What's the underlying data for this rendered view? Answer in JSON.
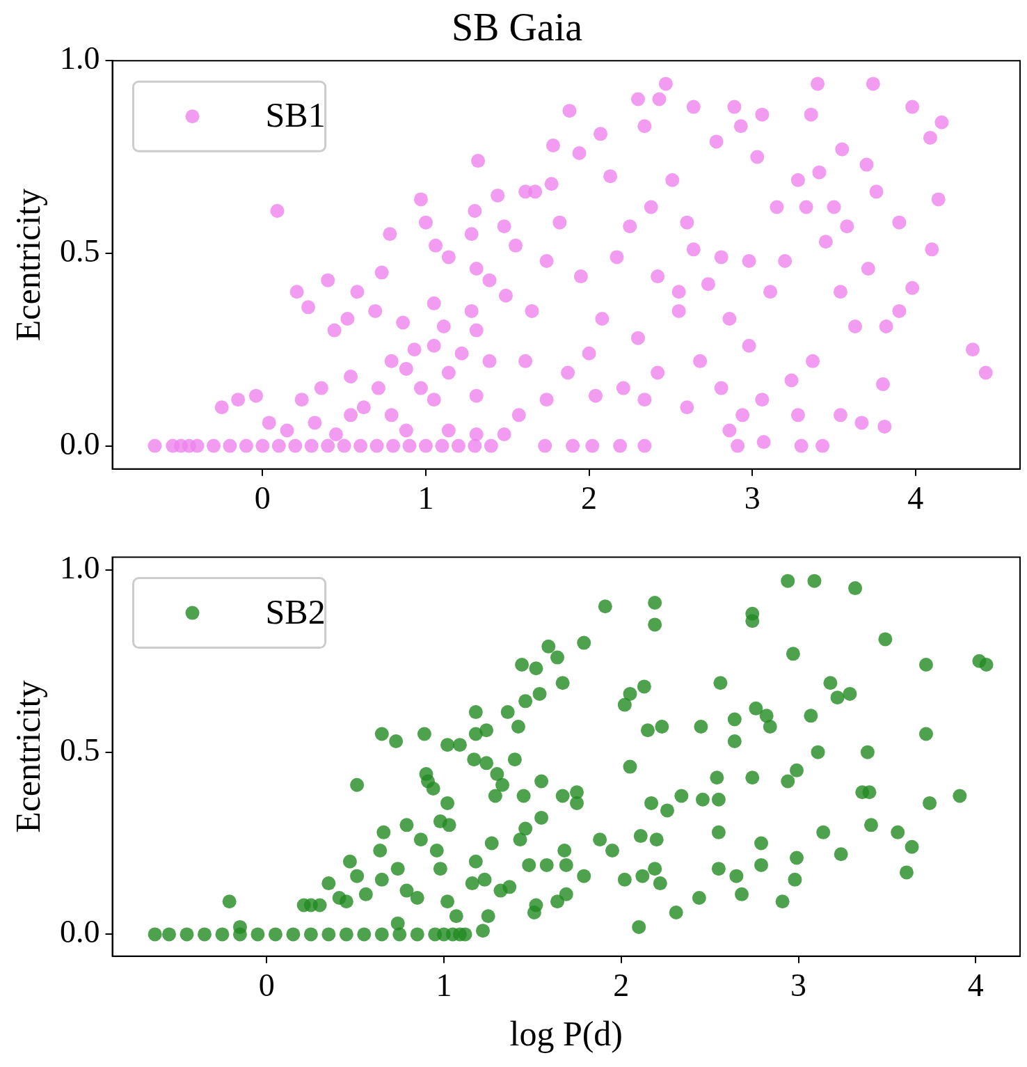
{
  "chart_data": [
    {
      "type": "scatter",
      "title": "SB Gaia",
      "ylabel": "Ecentricity",
      "xlim": [
        -0.92,
        4.64
      ],
      "ylim": [
        -0.06,
        1.0
      ],
      "xticks": [
        0,
        1,
        2,
        3,
        4
      ],
      "yticks": [
        {
          "value": 0,
          "label": "0.0"
        },
        {
          "value": 0.5,
          "label": "0.5"
        },
        {
          "value": 1,
          "label": "1.0"
        }
      ],
      "legend": "top left",
      "marker": "circle",
      "grid": false,
      "series": [
        {
          "name": "SB1",
          "color": "#ee82ee",
          "x": [
            -0.66,
            -0.55,
            -0.5,
            -0.45,
            -0.4,
            -0.3,
            -0.2,
            -0.1,
            0,
            0.1,
            0.2,
            0.3,
            0.4,
            0.5,
            0.6,
            0.7,
            0.8,
            0.9,
            1.0,
            1.1,
            1.2,
            1.3,
            1.4,
            1.73,
            1.9,
            2.02,
            2.19,
            2.34,
            2.91,
            3.3,
            3.43,
            0.09,
            -0.25,
            -0.04,
            -0.15,
            0.21,
            0.4,
            0.28,
            0.58,
            0.44,
            0.52,
            0.73,
            0.78,
            0.97,
            1.0,
            1.32,
            1.3,
            1.06,
            1.14,
            1.28,
            1.44,
            1.61,
            1.67,
            1.77,
            1.78,
            1.88,
            1.94,
            2.07,
            2.13,
            2.3,
            2.43,
            2.47,
            2.34,
            2.64,
            2.78,
            2.89,
            2.93,
            3.06,
            3.03,
            3.4,
            3.36,
            3.55,
            3.74,
            3.7,
            3.98,
            4.16,
            4.09,
            4.14,
            4.1,
            4.35,
            4.43,
            3.98,
            3.9,
            3.81,
            3.8,
            3.82,
            1.55,
            1.49,
            1.39,
            1.28,
            1.11,
            0.93,
            0.79,
            0.88,
            0.71,
            0.54,
            0.36,
            0.24,
            0.62,
            1.05,
            1.31,
            1.57,
            1.48,
            1.74,
            1.87,
            2.0,
            2.08,
            1.95,
            2.17,
            2.25,
            2.38,
            2.51,
            2.6,
            2.73,
            2.81,
            2.86,
            2.98,
            3.11,
            3.2,
            3.33,
            3.45,
            3.54,
            3.63,
            3.71,
            3.58,
            3.76,
            3.9,
            3.37,
            3.24,
            3.06,
            2.94,
            2.81,
            2.68,
            2.55,
            2.42,
            2.3,
            2.21,
            2.04,
            2.34,
            2.6,
            2.86,
            3.07,
            3.28,
            3.54,
            3.67,
            2.42,
            2.55,
            2.64,
            2.98,
            3.15,
            3.28,
            3.41,
            3.5,
            1.65,
            1.74,
            1.82,
            1.61,
            1.39,
            1.22,
            1.31,
            1.14,
            0.97,
            0.79,
            0.54,
            0.32,
            0.15,
            0.04,
            0.45,
            0.88,
            1.14,
            1.31,
            1.05,
            1.31,
            1.48,
            1.05,
            0.69,
            0.86
          ],
          "values": [
            0,
            0,
            0,
            0,
            0,
            0,
            0,
            0,
            0,
            0,
            0,
            0,
            0,
            0,
            0,
            0,
            0,
            0,
            0,
            0,
            0,
            0,
            0,
            0,
            0,
            0,
            0,
            0,
            0,
            0,
            0,
            0.61,
            0.1,
            0.13,
            0.12,
            0.4,
            0.43,
            0.36,
            0.4,
            0.3,
            0.33,
            0.45,
            0.55,
            0.64,
            0.58,
            0.74,
            0.61,
            0.52,
            0.49,
            0.55,
            0.65,
            0.66,
            0.66,
            0.68,
            0.78,
            0.87,
            0.76,
            0.81,
            0.7,
            0.9,
            0.9,
            0.94,
            0.83,
            0.88,
            0.79,
            0.88,
            0.83,
            0.86,
            0.75,
            0.94,
            0.86,
            0.77,
            0.94,
            0.73,
            0.88,
            0.84,
            0.8,
            0.64,
            0.51,
            0.25,
            0.19,
            0.41,
            0.35,
            0.05,
            0.16,
            0.31,
            0.52,
            0.39,
            0.43,
            0.35,
            0.31,
            0.25,
            0.22,
            0.2,
            0.15,
            0.18,
            0.15,
            0.12,
            0.1,
            0.12,
            0.13,
            0.08,
            0.03,
            0.12,
            0.19,
            0.24,
            0.33,
            0.44,
            0.49,
            0.57,
            0.62,
            0.69,
            0.58,
            0.42,
            0.49,
            0.33,
            0.26,
            0.4,
            0.48,
            0.62,
            0.53,
            0.4,
            0.31,
            0.46,
            0.57,
            0.66,
            0.58,
            0.22,
            0.17,
            0.12,
            0.08,
            0.15,
            0.22,
            0.35,
            0.19,
            0.28,
            0.15,
            0.13,
            0.12,
            0.1,
            0.04,
            0.01,
            0.08,
            0.08,
            0.06,
            0.44,
            0.4,
            0.51,
            0.48,
            0.62,
            0.69,
            0.71,
            0.62,
            0.35,
            0.48,
            0.58,
            0.22,
            0.22,
            0.24,
            0.3,
            0.19,
            0.15,
            0.08,
            0.08,
            0.06,
            0.04,
            0.06,
            0.03,
            0.04,
            0.04,
            0.03,
            0.37,
            0.46,
            0.57,
            0.26,
            0.35,
            0.32
          ]
        }
      ]
    },
    {
      "type": "scatter",
      "ylabel": "Ecentricity",
      "xlabel": "log P(d)",
      "xlim": [
        -0.87,
        4.25
      ],
      "ylim": [
        -0.06,
        1.035
      ],
      "xticks": [
        0,
        1,
        2,
        3,
        4
      ],
      "yticks": [
        {
          "value": 0,
          "label": "0.0"
        },
        {
          "value": 0.5,
          "label": "0.5"
        },
        {
          "value": 1,
          "label": "1.0"
        }
      ],
      "legend": "top left",
      "marker": "circle",
      "grid": false,
      "series": [
        {
          "name": "SB2",
          "color": "#228b22",
          "x": [
            -0.63,
            -0.55,
            -0.45,
            -0.35,
            -0.25,
            -0.15,
            -0.05,
            0.05,
            0.15,
            0.25,
            0.35,
            0.45,
            0.55,
            0.65,
            0.75,
            0.85,
            0.95,
            1.0,
            1.05,
            1.12,
            -0.21,
            -0.15,
            0.51,
            0.47,
            0.65,
            0.73,
            0.89,
            0.66,
            0.79,
            0.87,
            0.9,
            1.02,
            1.09,
            1.18,
            1.18,
            1.24,
            1.36,
            1.44,
            1.46,
            1.54,
            1.59,
            1.64,
            1.52,
            1.67,
            1.79,
            1.91,
            2.19,
            2.19,
            2.02,
            2.05,
            2.13,
            2.74,
            2.74,
            2.94,
            3.09,
            3.32,
            2.97,
            3.49,
            3.72,
            4.02,
            4.06,
            3.18,
            3.22,
            3.29,
            3.07,
            3.11,
            3.39,
            3.72,
            2.76,
            2.82,
            2.84,
            2.64,
            2.64,
            2.56,
            2.45,
            2.15,
            2.23,
            2.05,
            2.54,
            2.74,
            2.94,
            2.99,
            3.36,
            3.4,
            3.91,
            3.74,
            3.41,
            3.56,
            3.64,
            3.61,
            3.24,
            3.14,
            2.99,
            2.98,
            2.91,
            2.79,
            2.79,
            2.68,
            2.65,
            2.55,
            2.55,
            2.46,
            2.55,
            2.34,
            2.26,
            2.17,
            2.2,
            2.11,
            2.19,
            2.12,
            2.22,
            2.02,
            2.1,
            2.31,
            2.44,
            1.88,
            1.95,
            1.79,
            1.75,
            1.75,
            1.67,
            1.68,
            1.69,
            1.69,
            1.64,
            1.58,
            1.55,
            1.55,
            1.52,
            1.51,
            1.48,
            1.46,
            1.45,
            1.43,
            1.4,
            1.42,
            1.33,
            1.29,
            1.3,
            1.24,
            1.17,
            1.32,
            1.37,
            1.25,
            1.22,
            1.18,
            1.27,
            1.23,
            1.16,
            1.09,
            1.07,
            1.03,
            0.98,
            0.96,
            0.98,
            1.02,
            0.94,
            0.91,
            0.85,
            0.79,
            0.74,
            0.64,
            0.65,
            0.56,
            0.45,
            0.41,
            0.51,
            0.35,
            0.25,
            0.21,
            0.74,
            1.02,
            0.3
          ],
          "values": [
            0,
            0,
            0,
            0,
            0,
            0,
            0,
            0,
            0,
            0,
            0,
            0,
            0,
            0,
            0,
            0,
            0,
            0,
            0,
            0,
            0.09,
            0.02,
            0.41,
            0.2,
            0.55,
            0.53,
            0.55,
            0.28,
            0.3,
            0.26,
            0.44,
            0.52,
            0.52,
            0.61,
            0.55,
            0.56,
            0.61,
            0.74,
            0.64,
            0.66,
            0.79,
            0.76,
            0.73,
            0.69,
            0.8,
            0.9,
            0.91,
            0.85,
            0.63,
            0.66,
            0.68,
            0.88,
            0.86,
            0.97,
            0.97,
            0.95,
            0.77,
            0.81,
            0.74,
            0.75,
            0.74,
            0.69,
            0.65,
            0.66,
            0.6,
            0.5,
            0.5,
            0.55,
            0.62,
            0.6,
            0.57,
            0.59,
            0.53,
            0.69,
            0.57,
            0.56,
            0.57,
            0.46,
            0.43,
            0.43,
            0.42,
            0.45,
            0.39,
            0.39,
            0.38,
            0.36,
            0.3,
            0.28,
            0.24,
            0.17,
            0.22,
            0.28,
            0.21,
            0.15,
            0.09,
            0.25,
            0.19,
            0.11,
            0.16,
            0.28,
            0.18,
            0.37,
            0.37,
            0.38,
            0.34,
            0.36,
            0.26,
            0.27,
            0.18,
            0.16,
            0.14,
            0.15,
            0.02,
            0.06,
            0.1,
            0.26,
            0.23,
            0.16,
            0.39,
            0.36,
            0.38,
            0.23,
            0.19,
            0.11,
            0.09,
            0.19,
            0.32,
            0.42,
            0.08,
            0.06,
            0.19,
            0.29,
            0.38,
            0.26,
            0.48,
            0.57,
            0.41,
            0.38,
            0.44,
            0.47,
            0.48,
            0.12,
            0.13,
            0.05,
            0.01,
            0.2,
            0.25,
            0.15,
            0.14,
            0,
            0.05,
            0.3,
            0.31,
            0.23,
            0.18,
            0.36,
            0.4,
            0.42,
            0.1,
            0.12,
            0.18,
            0.23,
            0.15,
            0.11,
            0.09,
            0.1,
            0.16,
            0.14,
            0.08,
            0.08,
            0.03,
            0.09,
            0.08
          ]
        }
      ]
    }
  ]
}
